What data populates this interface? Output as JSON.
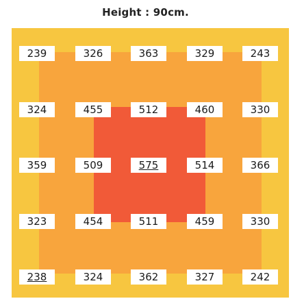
{
  "title": "Height : 90cm.",
  "colors": {
    "outer_zone": "#f7c640",
    "middle_zone": "#f8a53d",
    "inner_zone": "#f15a38",
    "label_bg": "#ffffff",
    "text": "#1a1a1a"
  },
  "grid": [
    [
      239,
      326,
      363,
      329,
      243
    ],
    [
      324,
      455,
      512,
      460,
      330
    ],
    [
      359,
      509,
      575,
      514,
      366
    ],
    [
      323,
      454,
      511,
      459,
      330
    ],
    [
      238,
      324,
      362,
      327,
      242
    ]
  ],
  "underlined": [
    [
      2,
      2
    ],
    [
      4,
      0
    ]
  ]
}
